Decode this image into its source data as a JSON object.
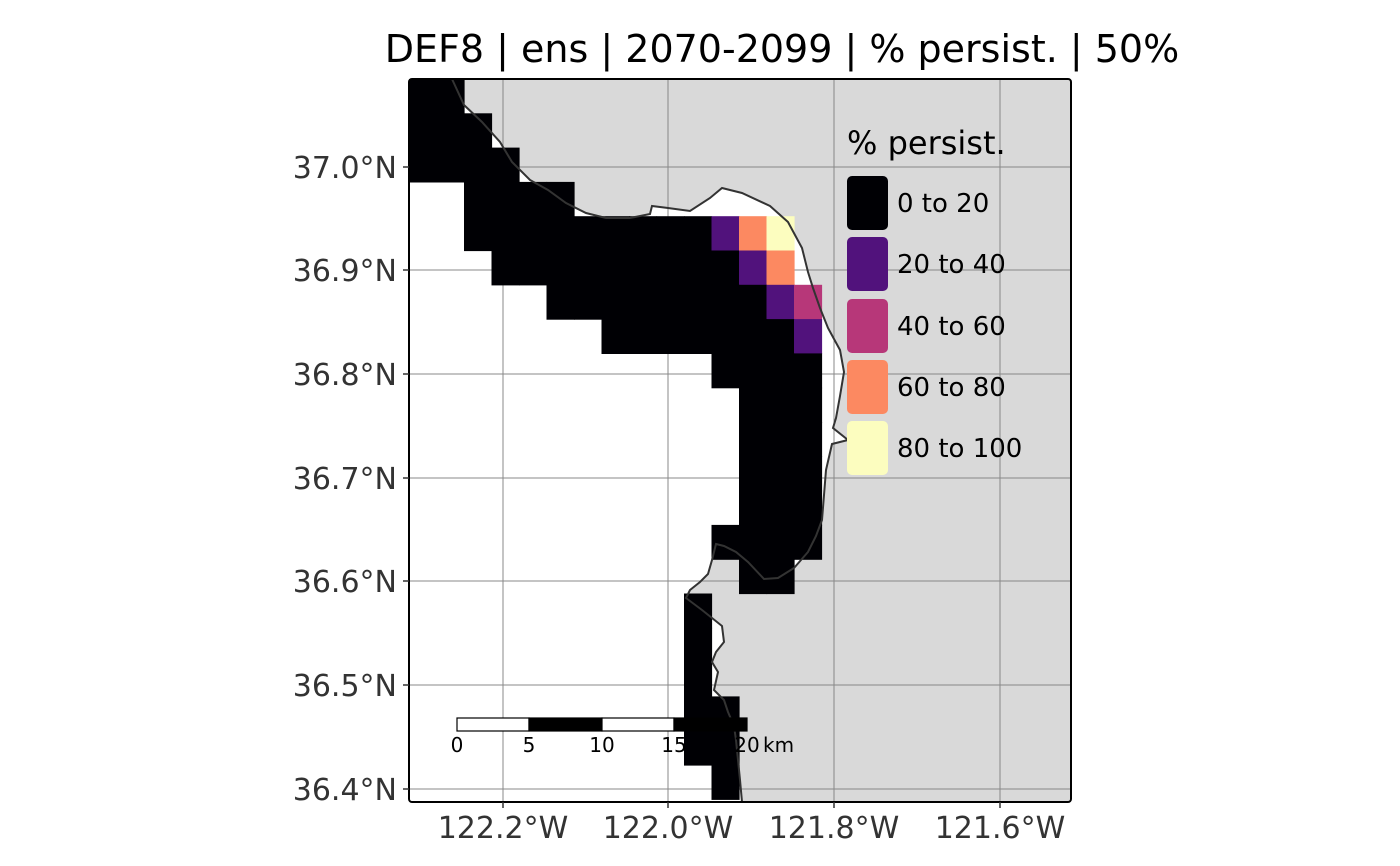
{
  "title": "DEF8 | ens | 2070-2099 | % persist. | 50%",
  "map": {
    "x_axis_labels": [
      "122.2°W",
      "122.0°W",
      "121.8°W",
      "121.6°W"
    ],
    "y_axis_labels": [
      "37.0°N",
      "36.9°N",
      "36.8°N",
      "36.7°N",
      "36.6°N",
      "36.5°N",
      "36.4°N"
    ],
    "land_color": "#d9d9d9",
    "sea_color": "#ffffff",
    "coast_color": "#333333",
    "grid_color": "#888888"
  },
  "legend": {
    "title": "% persist.",
    "items": [
      {
        "label": "0 to 20",
        "color": "#000004"
      },
      {
        "label": "20 to 40",
        "color": "#51127c"
      },
      {
        "label": "40 to 60",
        "color": "#b73779"
      },
      {
        "label": "60 to 80",
        "color": "#fc8961"
      },
      {
        "label": "80 to 100",
        "color": "#fcfdbf"
      }
    ]
  },
  "scale_bar": {
    "labels": [
      "0",
      "5",
      "10",
      "15",
      "20"
    ],
    "unit": "km"
  }
}
